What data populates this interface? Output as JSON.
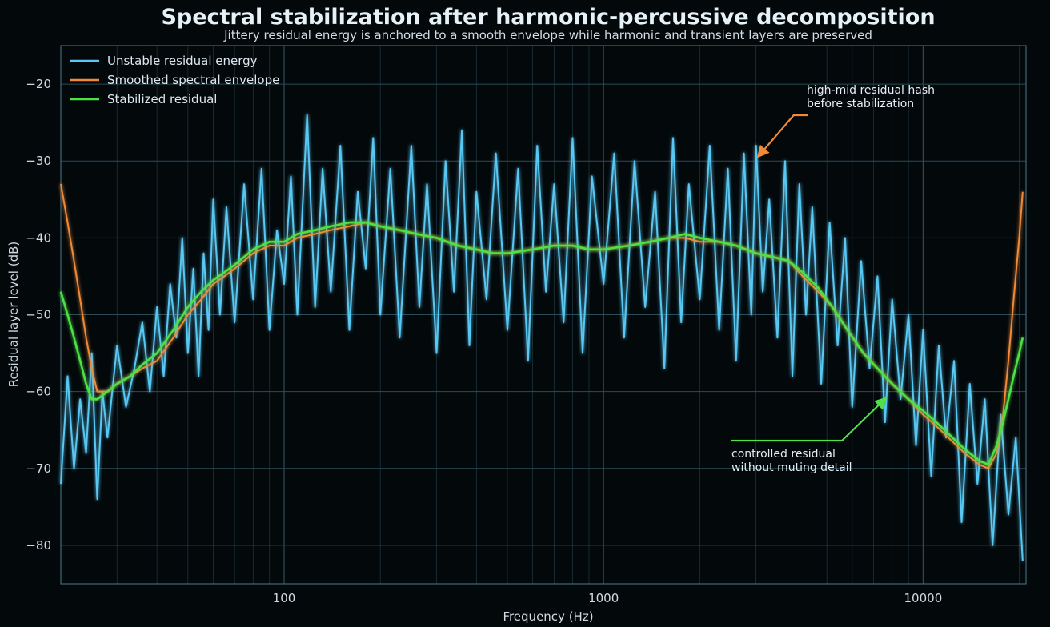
{
  "chart_data": {
    "type": "line",
    "title": "Spectral stabilization after harmonic-percussive decomposition",
    "subtitle": "Jittery residual energy is anchored to a smooth envelope while harmonic and transient layers are preserved",
    "xlabel": "Frequency (Hz)",
    "ylabel": "Residual layer level (dB)",
    "x_scale": "log",
    "xlim": [
      20,
      21000
    ],
    "ylim": [
      -85,
      -15
    ],
    "x_ticks": [
      {
        "value": 100,
        "label": "100"
      },
      {
        "value": 1000,
        "label": "1000"
      },
      {
        "value": 10000,
        "label": "10000"
      }
    ],
    "y_ticks": [
      {
        "value": -20,
        "label": "−20"
      },
      {
        "value": -30,
        "label": "−30"
      },
      {
        "value": -40,
        "label": "−40"
      },
      {
        "value": -50,
        "label": "−50"
      },
      {
        "value": -60,
        "label": "−60"
      },
      {
        "value": -70,
        "label": "−70"
      },
      {
        "value": -80,
        "label": "−80"
      }
    ],
    "grid": true,
    "legend_position": "top-left",
    "series": [
      {
        "name": "Unstable residual energy",
        "color": "#59c8f2",
        "x": [
          20,
          21,
          22,
          23,
          24,
          25,
          26,
          27,
          28,
          30,
          32,
          34,
          36,
          38,
          40,
          42,
          44,
          46,
          48,
          50,
          52,
          54,
          56,
          58,
          60,
          63,
          66,
          70,
          75,
          80,
          85,
          90,
          95,
          100,
          105,
          110,
          118,
          125,
          132,
          140,
          150,
          160,
          170,
          180,
          190,
          200,
          215,
          230,
          250,
          265,
          280,
          300,
          320,
          340,
          360,
          380,
          400,
          430,
          460,
          500,
          540,
          580,
          620,
          660,
          700,
          750,
          800,
          860,
          920,
          1000,
          1080,
          1160,
          1250,
          1350,
          1450,
          1550,
          1650,
          1750,
          1850,
          2000,
          2150,
          2300,
          2450,
          2600,
          2750,
          2900,
          3000,
          3150,
          3300,
          3500,
          3700,
          3900,
          4100,
          4300,
          4500,
          4800,
          5100,
          5400,
          5700,
          6000,
          6400,
          6800,
          7200,
          7600,
          8000,
          8500,
          9000,
          9500,
          10000,
          10600,
          11200,
          11800,
          12500,
          13200,
          14000,
          14800,
          15600,
          16500,
          17500,
          18500,
          19500,
          20500
        ],
        "y": [
          -72,
          -58,
          -70,
          -61,
          -68,
          -55,
          -74,
          -60,
          -66,
          -54,
          -62,
          -57,
          -51,
          -60,
          -49,
          -58,
          -46,
          -53,
          -40,
          -55,
          -44,
          -58,
          -42,
          -52,
          -35,
          -50,
          -36,
          -51,
          -33,
          -48,
          -31,
          -52,
          -39,
          -46,
          -32,
          -50,
          -24,
          -49,
          -31,
          -47,
          -28,
          -52,
          -34,
          -44,
          -27,
          -50,
          -31,
          -53,
          -28,
          -49,
          -33,
          -55,
          -30,
          -47,
          -26,
          -54,
          -34,
          -48,
          -29,
          -52,
          -31,
          -56,
          -28,
          -47,
          -33,
          -51,
          -27,
          -55,
          -32,
          -46,
          -29,
          -53,
          -30,
          -49,
          -34,
          -57,
          -27,
          -51,
          -33,
          -48,
          -28,
          -52,
          -31,
          -56,
          -29,
          -50,
          -28,
          -47,
          -35,
          -53,
          -30,
          -58,
          -33,
          -50,
          -36,
          -59,
          -38,
          -54,
          -40,
          -62,
          -43,
          -57,
          -45,
          -64,
          -48,
          -61,
          -50,
          -67,
          -52,
          -71,
          -54,
          -66,
          -56,
          -77,
          -59,
          -72,
          -61,
          -80,
          -63,
          -76,
          -66,
          -82
        ]
      },
      {
        "name": "Smoothed spectral envelope",
        "color": "#f08a38",
        "x": [
          20,
          21,
          22,
          23,
          24,
          25,
          26,
          28,
          30,
          33,
          36,
          40,
          45,
          50,
          55,
          60,
          65,
          70,
          80,
          90,
          100,
          110,
          125,
          140,
          160,
          180,
          200,
          230,
          260,
          300,
          350,
          400,
          450,
          500,
          600,
          700,
          800,
          900,
          1000,
          1200,
          1400,
          1600,
          1800,
          2000,
          2300,
          2600,
          3000,
          3400,
          3800,
          4200,
          4700,
          5200,
          5800,
          6500,
          7200,
          8000,
          9000,
          10000,
          11000,
          12000,
          13500,
          15000,
          16000,
          17000,
          17800,
          18500,
          19200,
          20000,
          20500
        ],
        "y": [
          -33,
          -38,
          -43,
          -48,
          -53,
          -57,
          -60,
          -60,
          -59,
          -58,
          -57,
          -56,
          -53,
          -50,
          -48,
          -46,
          -45,
          -44,
          -42,
          -41,
          -41,
          -40,
          -39.5,
          -39,
          -38.5,
          -38,
          -38.5,
          -39,
          -39.5,
          -40,
          -41,
          -41.5,
          -42,
          -42,
          -41.5,
          -41,
          -41,
          -41.5,
          -41.5,
          -41,
          -40.5,
          -40,
          -40,
          -40.5,
          -40.5,
          -41,
          -42,
          -42.5,
          -43,
          -45,
          -47,
          -49,
          -52,
          -55,
          -57,
          -59,
          -61,
          -63,
          -64.5,
          -66,
          -68,
          -69.5,
          -70,
          -68,
          -63,
          -56,
          -48,
          -40,
          -34
        ]
      },
      {
        "name": "Stabilized residual",
        "color": "#4fe046",
        "x": [
          20,
          21,
          22,
          23,
          24,
          25,
          26,
          28,
          30,
          33,
          36,
          40,
          45,
          50,
          55,
          60,
          65,
          70,
          80,
          90,
          100,
          110,
          125,
          140,
          160,
          180,
          200,
          230,
          260,
          300,
          350,
          400,
          450,
          500,
          600,
          700,
          800,
          900,
          1000,
          1200,
          1400,
          1600,
          1800,
          2000,
          2300,
          2600,
          3000,
          3400,
          3800,
          4200,
          4700,
          5200,
          5800,
          6500,
          7200,
          8000,
          9000,
          10000,
          11000,
          12000,
          13500,
          15000,
          16000,
          17000,
          17800,
          18500,
          19200,
          20000,
          20500
        ],
        "y": [
          -47,
          -50,
          -53,
          -56,
          -59,
          -61,
          -61,
          -60,
          -59,
          -58,
          -56.5,
          -55,
          -52,
          -49,
          -47,
          -45.5,
          -44.5,
          -43.5,
          -41.5,
          -40.5,
          -40.5,
          -39.5,
          -39,
          -38.5,
          -38,
          -38,
          -38.5,
          -39,
          -39.5,
          -40,
          -41,
          -41.5,
          -42,
          -42,
          -41.5,
          -41,
          -41,
          -41.5,
          -41.5,
          -41,
          -40.5,
          -40,
          -39.5,
          -40,
          -40.5,
          -41,
          -42,
          -42.5,
          -43,
          -44.5,
          -46.5,
          -49,
          -52,
          -55,
          -57,
          -59,
          -61,
          -62.5,
          -64,
          -65.5,
          -67.5,
          -69,
          -69.5,
          -67,
          -64,
          -61,
          -58,
          -55,
          -53
        ]
      }
    ],
    "annotations": [
      {
        "lines": [
          "high-mid residual hash",
          "before stabilization"
        ],
        "target_x": 2950,
        "target_y": -30,
        "color": "#f08a38"
      },
      {
        "lines": [
          "controlled residual",
          "without muting detail"
        ],
        "target_x": 7800,
        "target_y": -60.5,
        "color": "#4fe046"
      }
    ]
  }
}
